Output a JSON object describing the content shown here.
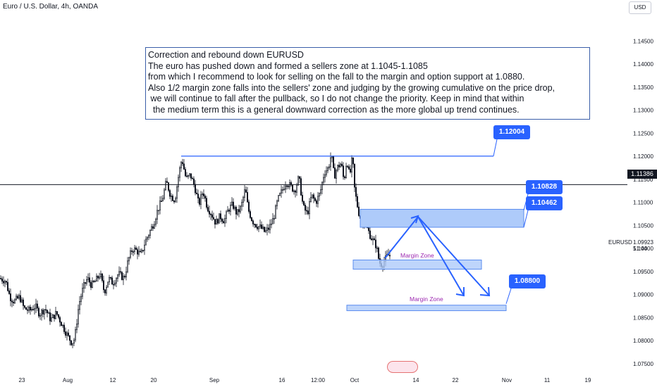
{
  "header": {
    "symbol": "Euro / U.S. Dollar, 4h, OANDA",
    "currency_button": "USD"
  },
  "annotation": {
    "title": "Correction and rebound down EURUSD",
    "lines": [
      "",
      "The euro has pushed down and formed a sellers zone at 1.1045-1.1085",
      "from which I recommend to look for selling on the fall to the margin and option support at 1.0880.",
      "Also 1/2 margin zone falls into the sellers' zone and judging by the growing cumulative on the price drop,",
      " we will continue to fall after the pullback, so I do not change the priority. Keep in mind that within",
      "  the medium term this is a general downward correction as the more global up trend continues."
    ]
  },
  "price_tag": "1.11386",
  "current": {
    "symbol": "EURUSD",
    "price": "1.09923",
    "countdown": "51:44"
  },
  "callouts": [
    {
      "label": "1.12004",
      "value": 1.12004
    },
    {
      "label": "1.10828",
      "value": 1.10828
    },
    {
      "label": "1.10462",
      "value": 1.10462
    },
    {
      "label": "1.08800",
      "value": 1.088
    }
  ],
  "zones": [
    {
      "label": "Margin Zone",
      "top": 1.0975,
      "bottom": 1.0955
    },
    {
      "label": "Margin Zone",
      "top": 1.0877,
      "bottom": 1.0865
    }
  ],
  "seller_zone": {
    "top": 1.1085,
    "bottom": 1.1046
  },
  "colors": {
    "up": "#089981",
    "down": "#f23645",
    "candle": "#131722",
    "zone_fill": "#aecbfa",
    "zone_border": "#5b8def",
    "arrow": "#2962ff"
  },
  "chart_data": {
    "type": "candlestick",
    "title": "Euro / U.S. Dollar, 4h, OANDA",
    "y_axis": {
      "ticks": [
        "1.14500",
        "1.14000",
        "1.13500",
        "1.13000",
        "1.12500",
        "1.12000",
        "1.11500",
        "1.11000",
        "1.10500",
        "1.10000",
        "1.09500",
        "1.09000",
        "1.08500",
        "1.08000",
        "1.07500"
      ],
      "range": [
        1.0725,
        1.1495
      ]
    },
    "x_axis": {
      "ticks": [
        "23",
        "Aug",
        "12",
        "20",
        "Sep",
        "16",
        "12:00",
        "Oct",
        "14",
        "22",
        "Nov",
        "11",
        "19"
      ]
    },
    "price_path": [
      [
        0,
        1.0935
      ],
      [
        8,
        1.093
      ],
      [
        14,
        1.0895
      ],
      [
        20,
        1.0885
      ],
      [
        28,
        1.0895
      ],
      [
        34,
        1.087
      ],
      [
        42,
        1.0865
      ],
      [
        50,
        1.0875
      ],
      [
        56,
        1.0858
      ],
      [
        64,
        1.087
      ],
      [
        72,
        1.0845
      ],
      [
        80,
        1.086
      ],
      [
        88,
        1.0835
      ],
      [
        96,
        1.081
      ],
      [
        102,
        1.0795
      ],
      [
        106,
        1.0805
      ],
      [
        112,
        1.088
      ],
      [
        118,
        1.0915
      ],
      [
        124,
        1.0935
      ],
      [
        130,
        1.092
      ],
      [
        136,
        1.093
      ],
      [
        142,
        1.0945
      ],
      [
        148,
        1.0905
      ],
      [
        154,
        1.0935
      ],
      [
        160,
        1.0925
      ],
      [
        168,
        1.0945
      ],
      [
        176,
        1.0935
      ],
      [
        182,
        1.0975
      ],
      [
        188,
        1.1
      ],
      [
        194,
        1.0995
      ],
      [
        200,
        1.0985
      ],
      [
        206,
        1.1015
      ],
      [
        212,
        1.1035
      ],
      [
        218,
        1.1055
      ],
      [
        224,
        1.1085
      ],
      [
        230,
        1.1105
      ],
      [
        236,
        1.1145
      ],
      [
        242,
        1.1115
      ],
      [
        248,
        1.1105
      ],
      [
        254,
        1.1165
      ],
      [
        258,
        1.1195
      ],
      [
        264,
        1.115
      ],
      [
        270,
        1.116
      ],
      [
        276,
        1.1135
      ],
      [
        282,
        1.1095
      ],
      [
        288,
        1.1125
      ],
      [
        294,
        1.109
      ],
      [
        300,
        1.1075
      ],
      [
        306,
        1.1055
      ],
      [
        312,
        1.107
      ],
      [
        318,
        1.106
      ],
      [
        324,
        1.1085
      ],
      [
        330,
        1.1095
      ],
      [
        336,
        1.1075
      ],
      [
        342,
        1.109
      ],
      [
        348,
        1.113
      ],
      [
        352,
        1.1085
      ],
      [
        358,
        1.106
      ],
      [
        364,
        1.105
      ],
      [
        370,
        1.1045
      ],
      [
        376,
        1.1035
      ],
      [
        382,
        1.1045
      ],
      [
        388,
        1.1065
      ],
      [
        394,
        1.1105
      ],
      [
        400,
        1.1125
      ],
      [
        406,
        1.1145
      ],
      [
        412,
        1.1135
      ],
      [
        418,
        1.1125
      ],
      [
        424,
        1.1155
      ],
      [
        430,
        1.109
      ],
      [
        436,
        1.1075
      ],
      [
        442,
        1.1115
      ],
      [
        448,
        1.11
      ],
      [
        454,
        1.112
      ],
      [
        460,
        1.1165
      ],
      [
        466,
        1.1175
      ],
      [
        470,
        1.1205
      ],
      [
        474,
        1.1155
      ],
      [
        478,
        1.1175
      ],
      [
        484,
        1.1185
      ],
      [
        488,
        1.1145
      ],
      [
        492,
        1.1195
      ],
      [
        496,
        1.1155
      ],
      [
        500,
        1.12
      ],
      [
        503,
        1.113
      ],
      [
        506,
        1.11
      ],
      [
        510,
        1.107
      ],
      [
        514,
        1.106
      ],
      [
        518,
        1.105
      ],
      [
        522,
        1.104
      ],
      [
        526,
        1.1025
      ],
      [
        530,
        1.1015
      ],
      [
        534,
        1.1005
      ],
      [
        538,
        1.097
      ],
      [
        542,
        1.0965
      ],
      [
        546,
        1.0975
      ],
      [
        550,
        1.0985
      ],
      [
        554,
        1.0985
      ]
    ],
    "horizontal_lines": [
      {
        "value": 1.11386,
        "label": "1.11386"
      },
      {
        "value": 1.12004,
        "label": "1.12004"
      }
    ]
  }
}
